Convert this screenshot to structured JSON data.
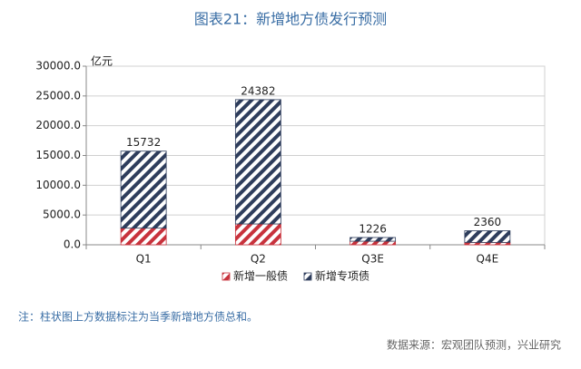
{
  "chart_data": {
    "type": "stacked_bar",
    "title": "图表21：新增地方债发行预测",
    "y_unit": "亿元",
    "categories": [
      "Q1",
      "Q2",
      "Q3E",
      "Q4E"
    ],
    "series": [
      {
        "name": "新增一般债",
        "color": "#c8323c",
        "values": [
          2800,
          3500,
          600,
          400
        ]
      },
      {
        "name": "新增专项债",
        "color": "#2e3d5c",
        "values": [
          12932,
          20882,
          626,
          1960
        ]
      }
    ],
    "totals": [
      15732,
      24382,
      1226,
      2360
    ],
    "ylim": [
      0,
      30000
    ],
    "yticks": [
      {
        "value": 0,
        "label": "0.0"
      },
      {
        "value": 5000,
        "label": "5000.0"
      },
      {
        "value": 10000,
        "label": "10000.0"
      },
      {
        "value": 15000,
        "label": "15000.0"
      },
      {
        "value": 20000,
        "label": "20000.0"
      },
      {
        "value": 25000,
        "label": "25000.0"
      },
      {
        "value": 30000,
        "label": "30000.0"
      }
    ],
    "grid": true,
    "legend": "bottom",
    "note": "注：柱状图上方数据标注为当季新增地方债总和。",
    "source": "数据来源：宏观团队预测，兴业研究"
  }
}
